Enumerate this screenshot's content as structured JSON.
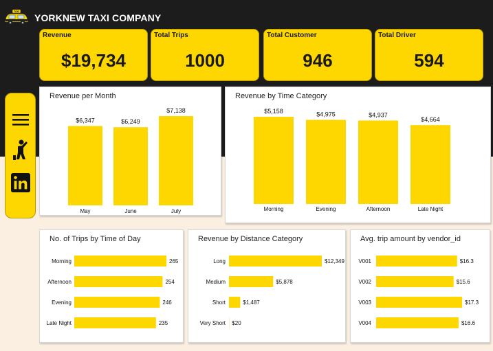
{
  "app": {
    "title": "YORKNEW TAXI COMPANY",
    "logo_text": "TAXI",
    "accent": "#ffd700",
    "dark": "#1c1c1c",
    "background": "#fbefe2"
  },
  "kpis": [
    {
      "label": "Revenue",
      "value": "$19,734"
    },
    {
      "label": "Total Trips",
      "value": "1000"
    },
    {
      "label": "Total Customer",
      "value": "946"
    },
    {
      "label": "Total Driver",
      "value": "594"
    }
  ],
  "nav": {
    "items": [
      {
        "icon": "hamburger-menu-icon"
      },
      {
        "icon": "person-hailing-taxi-icon"
      },
      {
        "icon": "linkedin-icon"
      }
    ]
  },
  "chart_data": [
    {
      "type": "bar",
      "title": "Revenue per Month",
      "categories": [
        "May",
        "June",
        "July"
      ],
      "values": [
        6347,
        6249,
        7138
      ],
      "labels": [
        "$6,347",
        "$6,249",
        "$7,138"
      ],
      "ylim": [
        0,
        7138
      ],
      "color": "#ffd700"
    },
    {
      "type": "bar",
      "title": "Revenue by Time Category",
      "categories": [
        "Morning",
        "Evening",
        "Afternoon",
        "Late Night"
      ],
      "values": [
        5158,
        4975,
        4937,
        4664
      ],
      "labels": [
        "$5,158",
        "$4,975",
        "$4,937",
        "$4,664"
      ],
      "ylim": [
        0,
        5158
      ],
      "color": "#ffd700"
    },
    {
      "type": "bar",
      "orientation": "horizontal",
      "title": "No. of Trips by Time of Day",
      "categories": [
        "Morning",
        "Afternoon",
        "Evening",
        "Late Night"
      ],
      "values": [
        265,
        254,
        246,
        235
      ],
      "labels": [
        "265",
        "254",
        "246",
        "235"
      ],
      "xlim": [
        0,
        265
      ],
      "color": "#ffd700"
    },
    {
      "type": "bar",
      "orientation": "horizontal",
      "title": "Revenue by Distance Category",
      "categories": [
        "Long",
        "Medium",
        "Short",
        "Very Short"
      ],
      "values": [
        12349,
        5878,
        1487,
        20
      ],
      "labels": [
        "$12,349",
        "$5,878",
        "$1,487",
        "$20"
      ],
      "xlim": [
        0,
        12349
      ],
      "color": "#ffd700"
    },
    {
      "type": "bar",
      "orientation": "horizontal",
      "title": "Avg. trip amount by vendor_id",
      "categories": [
        "V001",
        "V002",
        "V003",
        "V004"
      ],
      "values": [
        16.3,
        15.6,
        17.3,
        16.6
      ],
      "labels": [
        "$16.3",
        "$15.6",
        "$17.3",
        "$16.6"
      ],
      "xlim": [
        0,
        17.3
      ],
      "color": "#ffd700"
    }
  ]
}
